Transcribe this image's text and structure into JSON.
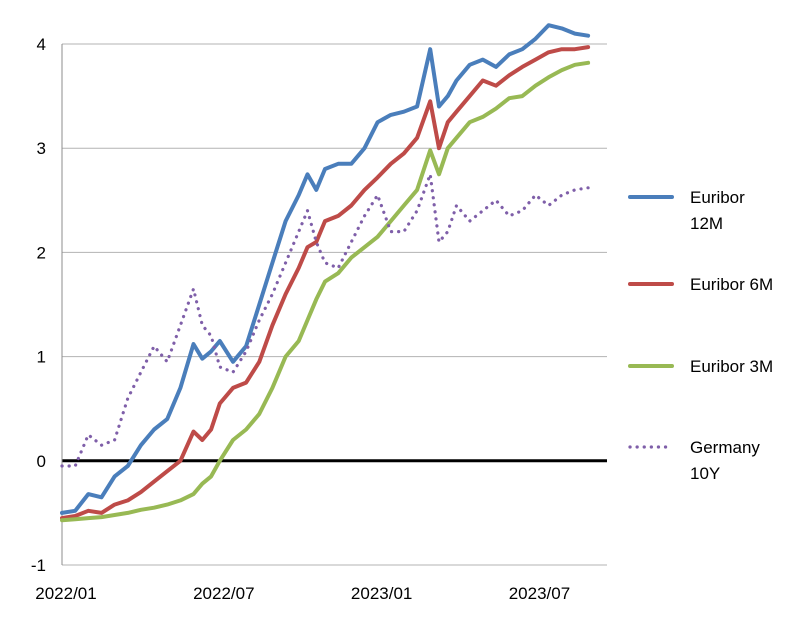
{
  "chart_data": {
    "type": "line",
    "title": "",
    "xlabel": "",
    "ylabel": "",
    "ylim": [
      -1,
      4
    ],
    "yticks": [
      -1,
      0,
      1,
      2,
      3,
      4
    ],
    "x_tick_labels": [
      "2022/01",
      "2022/07",
      "2023/01",
      "2023/07"
    ],
    "grid": "horizontal",
    "zero_line": true,
    "legend_position": "right",
    "x_range": [
      "2022/01",
      "2023/09"
    ],
    "series": [
      {
        "name": [
          "Euribor",
          "12M"
        ],
        "color": "#4a7ebb",
        "style": "solid",
        "x": [
          "2022/01",
          "2022/01",
          "2022/02",
          "2022/02",
          "2022/03",
          "2022/03",
          "2022/04",
          "2022/04",
          "2022/05",
          "2022/05",
          "2022/06",
          "2022/06",
          "2022/06",
          "2022/07",
          "2022/07",
          "2022/08",
          "2022/08",
          "2022/09",
          "2022/09",
          "2022/10",
          "2022/10",
          "2022/10",
          "2022/11",
          "2022/11",
          "2022/12",
          "2022/12",
          "2023/01",
          "2023/01",
          "2023/02",
          "2023/02",
          "2023/03",
          "2023/03",
          "2023/03",
          "2023/04",
          "2023/04",
          "2023/05",
          "2023/05",
          "2023/06",
          "2023/06",
          "2023/07",
          "2023/07",
          "2023/08",
          "2023/08",
          "2023/09"
        ],
        "y": [
          -0.5,
          -0.48,
          -0.32,
          -0.35,
          -0.15,
          -0.05,
          0.15,
          0.3,
          0.4,
          0.7,
          1.12,
          0.98,
          1.05,
          1.15,
          0.95,
          1.1,
          1.5,
          1.9,
          2.3,
          2.55,
          2.75,
          2.6,
          2.8,
          2.85,
          2.85,
          3.0,
          3.25,
          3.32,
          3.35,
          3.4,
          3.95,
          3.4,
          3.5,
          3.65,
          3.8,
          3.85,
          3.78,
          3.9,
          3.95,
          4.05,
          4.18,
          4.15,
          4.1,
          4.08
        ]
      },
      {
        "name": [
          "Euribor 6M"
        ],
        "color": "#be4b48",
        "style": "solid",
        "x": [
          "2022/01",
          "2022/01",
          "2022/02",
          "2022/02",
          "2022/03",
          "2022/03",
          "2022/04",
          "2022/04",
          "2022/05",
          "2022/05",
          "2022/06",
          "2022/06",
          "2022/06",
          "2022/07",
          "2022/07",
          "2022/08",
          "2022/08",
          "2022/09",
          "2022/09",
          "2022/10",
          "2022/10",
          "2022/10",
          "2022/11",
          "2022/11",
          "2022/12",
          "2022/12",
          "2023/01",
          "2023/01",
          "2023/02",
          "2023/02",
          "2023/03",
          "2023/03",
          "2023/03",
          "2023/04",
          "2023/04",
          "2023/05",
          "2023/05",
          "2023/06",
          "2023/06",
          "2023/07",
          "2023/07",
          "2023/08",
          "2023/08",
          "2023/09"
        ],
        "y": [
          -0.55,
          -0.53,
          -0.48,
          -0.5,
          -0.42,
          -0.38,
          -0.3,
          -0.2,
          -0.1,
          0.0,
          0.28,
          0.2,
          0.3,
          0.55,
          0.7,
          0.75,
          0.95,
          1.3,
          1.6,
          1.85,
          2.05,
          2.1,
          2.3,
          2.35,
          2.45,
          2.6,
          2.72,
          2.85,
          2.95,
          3.1,
          3.45,
          3.0,
          3.25,
          3.35,
          3.5,
          3.65,
          3.6,
          3.7,
          3.78,
          3.85,
          3.92,
          3.95,
          3.95,
          3.97
        ]
      },
      {
        "name": [
          "Euribor 3M"
        ],
        "color": "#98b954",
        "style": "solid",
        "x": [
          "2022/01",
          "2022/01",
          "2022/02",
          "2022/02",
          "2022/03",
          "2022/03",
          "2022/04",
          "2022/04",
          "2022/05",
          "2022/05",
          "2022/06",
          "2022/06",
          "2022/06",
          "2022/07",
          "2022/07",
          "2022/08",
          "2022/08",
          "2022/09",
          "2022/09",
          "2022/10",
          "2022/10",
          "2022/10",
          "2022/11",
          "2022/11",
          "2022/12",
          "2022/12",
          "2023/01",
          "2023/01",
          "2023/02",
          "2023/02",
          "2023/03",
          "2023/03",
          "2023/03",
          "2023/04",
          "2023/04",
          "2023/05",
          "2023/05",
          "2023/06",
          "2023/06",
          "2023/07",
          "2023/07",
          "2023/08",
          "2023/08",
          "2023/09"
        ],
        "y": [
          -0.57,
          -0.56,
          -0.55,
          -0.54,
          -0.52,
          -0.5,
          -0.47,
          -0.45,
          -0.42,
          -0.38,
          -0.32,
          -0.22,
          -0.15,
          0.0,
          0.2,
          0.3,
          0.45,
          0.7,
          1.0,
          1.15,
          1.35,
          1.55,
          1.72,
          1.8,
          1.95,
          2.05,
          2.15,
          2.3,
          2.45,
          2.6,
          2.98,
          2.75,
          3.0,
          3.1,
          3.25,
          3.3,
          3.38,
          3.48,
          3.5,
          3.6,
          3.68,
          3.75,
          3.8,
          3.82
        ]
      },
      {
        "name": [
          "Germany",
          "10Y"
        ],
        "color": "#7f5fa9",
        "style": "dotted",
        "x": [
          "2022/01",
          "2022/01",
          "2022/02",
          "2022/02",
          "2022/03",
          "2022/03",
          "2022/04",
          "2022/04",
          "2022/05",
          "2022/05",
          "2022/06",
          "2022/06",
          "2022/06",
          "2022/07",
          "2022/07",
          "2022/08",
          "2022/08",
          "2022/09",
          "2022/09",
          "2022/10",
          "2022/10",
          "2022/10",
          "2022/11",
          "2022/11",
          "2022/12",
          "2022/12",
          "2023/01",
          "2023/01",
          "2023/02",
          "2023/02",
          "2023/03",
          "2023/03",
          "2023/03",
          "2023/04",
          "2023/04",
          "2023/05",
          "2023/05",
          "2023/06",
          "2023/06",
          "2023/07",
          "2023/07",
          "2023/08",
          "2023/08",
          "2023/09"
        ],
        "y": [
          -0.05,
          -0.05,
          0.25,
          0.15,
          0.2,
          0.6,
          0.85,
          1.1,
          0.95,
          1.3,
          1.65,
          1.3,
          1.2,
          0.9,
          0.85,
          1.05,
          1.35,
          1.6,
          1.9,
          2.2,
          2.4,
          2.1,
          1.9,
          1.85,
          2.1,
          2.35,
          2.55,
          2.2,
          2.2,
          2.4,
          2.75,
          2.1,
          2.2,
          2.45,
          2.3,
          2.4,
          2.5,
          2.35,
          2.4,
          2.55,
          2.45,
          2.55,
          2.6,
          2.62
        ]
      }
    ]
  }
}
